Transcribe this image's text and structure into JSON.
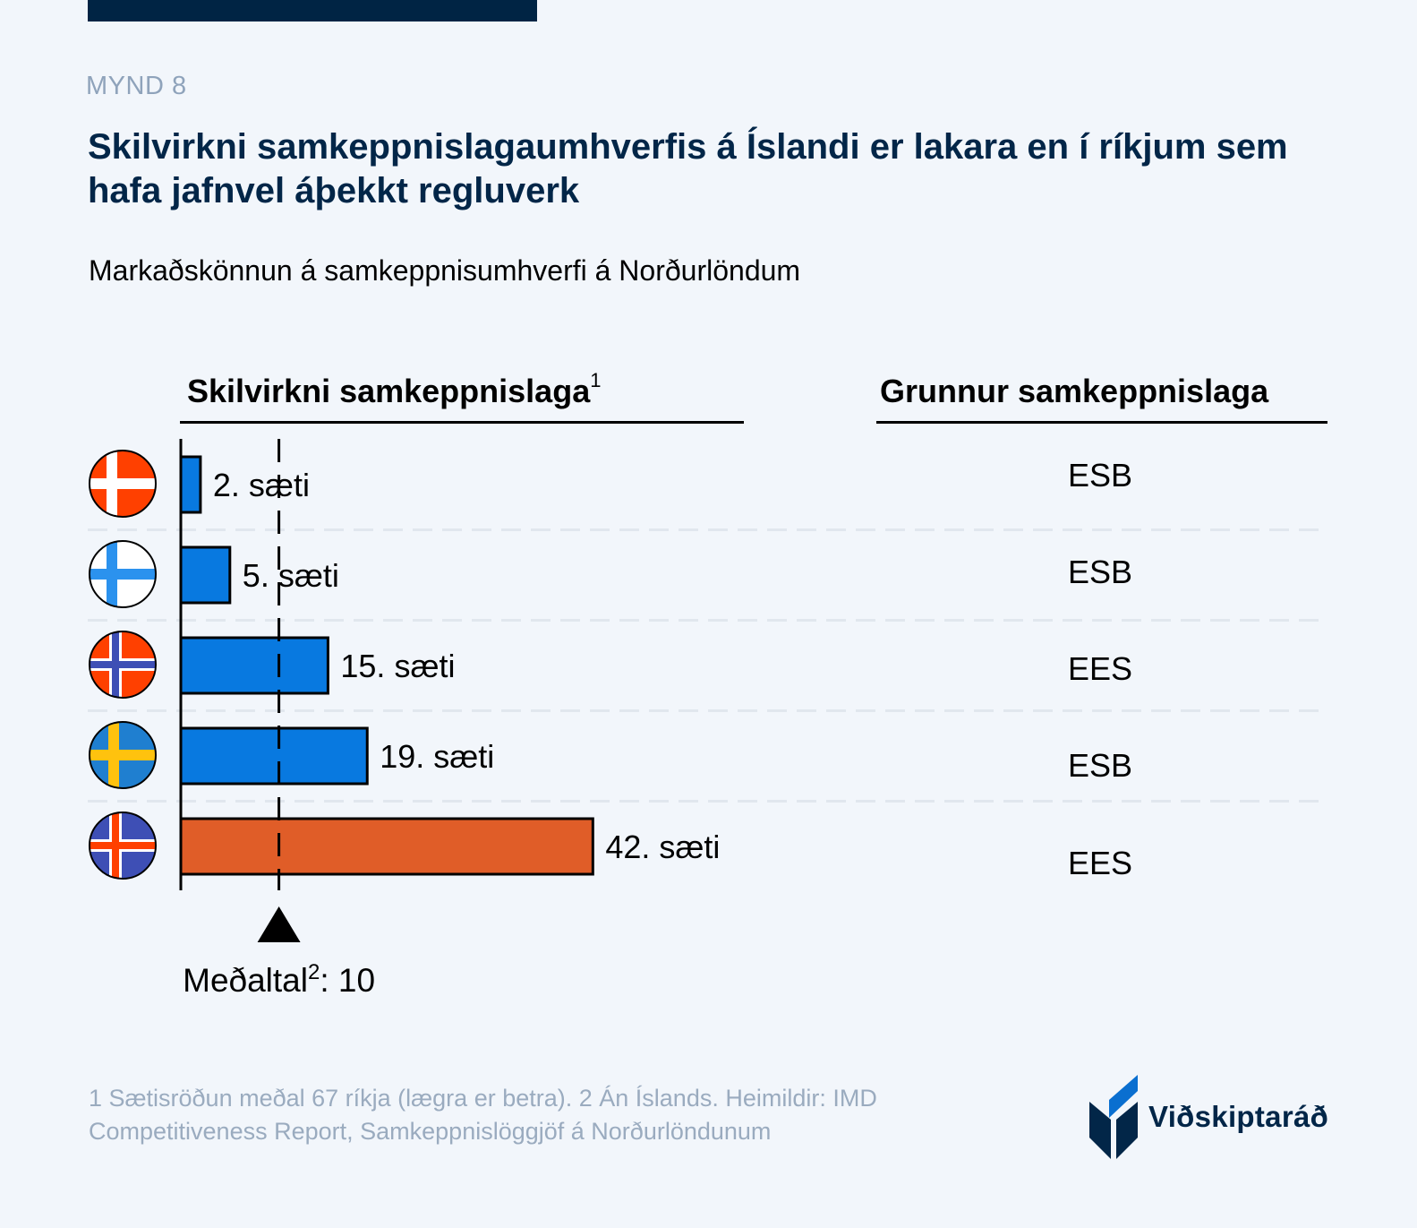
{
  "header": {
    "kicker": "MYND 8",
    "title": "Skilvirkni samkeppnislagaumhverfis á Íslandi er lakara en í ríkjum sem hafa jafnvel áþekkt regluverk",
    "subtitle": "Markaðskönnun á samkeppnisumhverfi á Norðurlöndum"
  },
  "columns": {
    "left_heading": "Skilvirkni samkeppnislaga",
    "left_heading_sup": "1",
    "right_heading": "Grunnur samkeppnislaga"
  },
  "chart_data": {
    "type": "bar",
    "orientation": "horizontal",
    "title": "Skilvirkni samkeppnislaga",
    "categories": [
      "Danmörk",
      "Finnland",
      "Noregur",
      "Svíþjóð",
      "Ísland"
    ],
    "flag_icons": [
      "denmark-flag-icon",
      "finland-flag-icon",
      "norway-flag-icon",
      "sweden-flag-icon",
      "iceland-flag-icon"
    ],
    "values": [
      2,
      5,
      15,
      19,
      42
    ],
    "value_labels": [
      "2. sæti",
      "5. sæti",
      "15. sæti",
      "19. sæti",
      "42. sæti"
    ],
    "bar_colors": [
      "#0879e0",
      "#0879e0",
      "#0879e0",
      "#0879e0",
      "#e05d28"
    ],
    "xlim": [
      0,
      42
    ],
    "grid": false,
    "reference_line": {
      "value": 10,
      "label": "Meðaltal",
      "label_sup": "2",
      "label_value": ": 10"
    },
    "basis": [
      "ESB",
      "ESB",
      "EES",
      "ESB",
      "EES"
    ]
  },
  "colors": {
    "accent_blue": "#0879e0",
    "iceland_orange": "#e05d28",
    "navy": "#022648",
    "muted": "#9aabbf"
  },
  "footer": {
    "note": "1 Sætisröðun meðal 67 ríkja (lægra er betra). 2 Án Íslands. Heimildir: IMD Competitiveness Report, Samkeppnislöggjöf á Norðurlöndunum",
    "logo_text": "Viðskiptaráð"
  }
}
